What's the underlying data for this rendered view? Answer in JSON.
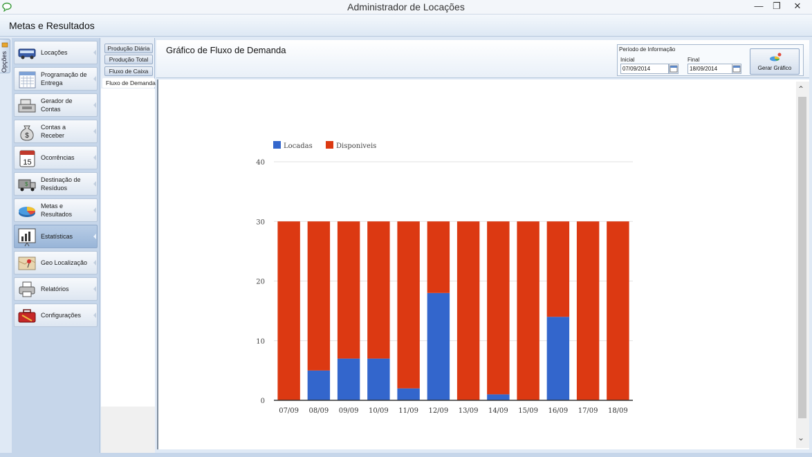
{
  "window": {
    "title": "Administrador de Locações",
    "icon": "speech-bubble-icon"
  },
  "header": {
    "title": "Metas e Resultados"
  },
  "options_tab": {
    "label": "Opções"
  },
  "sidebar": {
    "items": [
      {
        "label": "Locações",
        "icon": "bus-icon"
      },
      {
        "label": "Programação de\nEntrega",
        "icon": "calendar-icon"
      },
      {
        "label": "Gerador de\nContas",
        "icon": "cash-register-icon"
      },
      {
        "label": "Contas a\nReceber",
        "icon": "money-bag-icon"
      },
      {
        "label": "Ocorrências",
        "icon": "calendar-15-icon"
      },
      {
        "label": "Destinação de\nResíduos",
        "icon": "truck-icon"
      },
      {
        "label": "Metas e\nResultados",
        "icon": "pie-chart-icon"
      },
      {
        "label": "Estatísticas",
        "icon": "bar-chart-icon"
      },
      {
        "label": "Geo Localização",
        "icon": "map-pin-icon"
      },
      {
        "label": "Relatórios",
        "icon": "printer-icon"
      },
      {
        "label": "Configurações",
        "icon": "toolbox-icon"
      }
    ]
  },
  "subtabs": [
    {
      "label": "Produção Diária"
    },
    {
      "label": "Produção Total"
    },
    {
      "label": "Fluxo de Caixa"
    },
    {
      "label": "Fluxo de Demanda"
    }
  ],
  "main": {
    "title": "Gráfico de Fluxo de Demanda",
    "period": {
      "legend": "Período de Informação",
      "start_label": "Inicial",
      "start_value": "07/09/2014",
      "end_label": "Final",
      "end_value": "18/09/2014"
    },
    "generate_button": "Gerar Gráfico"
  },
  "colors": {
    "locadas": "#3366cc",
    "disponiveis": "#dc3912"
  },
  "chart_data": {
    "type": "bar",
    "stacked": true,
    "categories": [
      "07/09",
      "08/09",
      "09/09",
      "10/09",
      "11/09",
      "12/09",
      "13/09",
      "14/09",
      "15/09",
      "16/09",
      "17/09",
      "18/09"
    ],
    "series": [
      {
        "name": "Locadas",
        "values": [
          0,
          5,
          7,
          7,
          2,
          18,
          0,
          1,
          0,
          14,
          0,
          0
        ]
      },
      {
        "name": "Disponiveis",
        "values": [
          30,
          25,
          23,
          23,
          28,
          12,
          30,
          29,
          30,
          16,
          30,
          30
        ]
      }
    ],
    "yticks": [
      "0",
      "10",
      "20",
      "30",
      "40"
    ],
    "ylim": [
      0,
      40
    ],
    "legend_position": "top-left",
    "grid": true
  }
}
